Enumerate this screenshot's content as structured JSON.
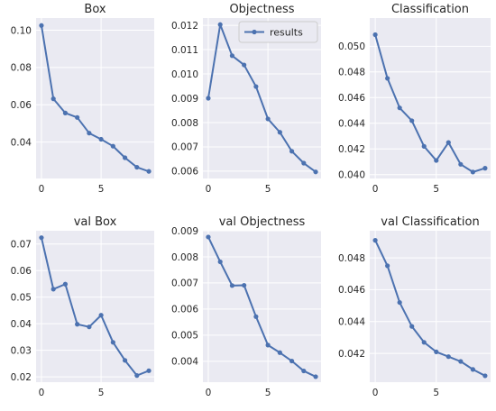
{
  "legend": {
    "label": "results",
    "placement": "upper right of Objectness panel"
  },
  "colors": {
    "series": "#4c72b0",
    "plot_bg": "#eaeaf2",
    "grid": "#ffffff"
  },
  "chart_data": [
    {
      "type": "line",
      "title": "Box",
      "grid": true,
      "x": [
        0,
        1,
        2,
        3,
        4,
        5,
        6,
        7,
        8,
        9
      ],
      "series": [
        {
          "name": "results",
          "values": [
            0.1025,
            0.0632,
            0.0556,
            0.0532,
            0.0448,
            0.0415,
            0.0378,
            0.0316,
            0.0265,
            0.0243
          ]
        }
      ],
      "xlim": [
        -0.45,
        9.45
      ],
      "ylim": [
        0.0205,
        0.1065
      ],
      "xticks": [
        0,
        5
      ],
      "xtick_labels": [
        "0",
        "5"
      ],
      "yticks": [
        0.04,
        0.06,
        0.08,
        0.1
      ],
      "ytick_labels": [
        "0.04",
        "0.06",
        "0.08",
        "0.10"
      ]
    },
    {
      "type": "line",
      "title": "Objectness",
      "grid": true,
      "x": [
        0,
        1,
        2,
        3,
        4,
        5,
        6,
        7,
        8,
        9
      ],
      "series": [
        {
          "name": "results",
          "values": [
            0.009,
            0.01203,
            0.01075,
            0.01037,
            0.00948,
            0.00815,
            0.0076,
            0.00682,
            0.00633,
            0.00597
          ]
        }
      ],
      "xlim": [
        -0.45,
        9.45
      ],
      "ylim": [
        0.0057,
        0.0123
      ],
      "xticks": [
        0,
        5
      ],
      "xtick_labels": [
        "0",
        "5"
      ],
      "yticks": [
        0.006,
        0.007,
        0.008,
        0.009,
        0.01,
        0.011,
        0.012
      ],
      "ytick_labels": [
        "0.006",
        "0.007",
        "0.008",
        "0.009",
        "0.010",
        "0.011",
        "0.012"
      ]
    },
    {
      "type": "line",
      "title": "Classification",
      "grid": true,
      "x": [
        0,
        1,
        2,
        3,
        4,
        5,
        6,
        7,
        8,
        9
      ],
      "series": [
        {
          "name": "results",
          "values": [
            0.0509,
            0.0475,
            0.0452,
            0.0442,
            0.0422,
            0.0411,
            0.0425,
            0.0408,
            0.0402,
            0.0405
          ]
        }
      ],
      "xlim": [
        -0.45,
        9.45
      ],
      "ylim": [
        0.0397,
        0.0522
      ],
      "xticks": [
        0,
        5
      ],
      "xtick_labels": [
        "0",
        "5"
      ],
      "yticks": [
        0.04,
        0.042,
        0.044,
        0.046,
        0.048,
        0.05
      ],
      "ytick_labels": [
        "0.040",
        "0.042",
        "0.044",
        "0.046",
        "0.048",
        "0.050"
      ]
    },
    {
      "type": "line",
      "title": "val Box",
      "grid": true,
      "x": [
        0,
        1,
        2,
        3,
        4,
        5,
        6,
        7,
        8,
        9
      ],
      "series": [
        {
          "name": "results",
          "values": [
            0.0724,
            0.053,
            0.0549,
            0.0398,
            0.0388,
            0.0432,
            0.033,
            0.0262,
            0.0205,
            0.0223
          ]
        }
      ],
      "xlim": [
        -0.45,
        9.45
      ],
      "ylim": [
        0.018,
        0.075
      ],
      "xticks": [
        0,
        5
      ],
      "xtick_labels": [
        "0",
        "5"
      ],
      "yticks": [
        0.02,
        0.03,
        0.04,
        0.05,
        0.06,
        0.07
      ],
      "ytick_labels": [
        "0.02",
        "0.03",
        "0.04",
        "0.05",
        "0.06",
        "0.07"
      ]
    },
    {
      "type": "line",
      "title": "val Objectness",
      "grid": true,
      "x": [
        0,
        1,
        2,
        3,
        4,
        5,
        6,
        7,
        8,
        9
      ],
      "series": [
        {
          "name": "results",
          "values": [
            0.00876,
            0.00781,
            0.0069,
            0.00691,
            0.00571,
            0.00462,
            0.00433,
            0.00401,
            0.00363,
            0.00341
          ]
        }
      ],
      "xlim": [
        -0.45,
        9.45
      ],
      "ylim": [
        0.0032,
        0.009
      ],
      "xticks": [
        0,
        5
      ],
      "xtick_labels": [
        "0",
        "5"
      ],
      "yticks": [
        0.004,
        0.005,
        0.006,
        0.007,
        0.008,
        0.009
      ],
      "ytick_labels": [
        "0.004",
        "0.005",
        "0.006",
        "0.007",
        "0.008",
        "0.009"
      ]
    },
    {
      "type": "line",
      "title": "val Classification",
      "grid": true,
      "x": [
        0,
        1,
        2,
        3,
        4,
        5,
        6,
        7,
        8,
        9
      ],
      "series": [
        {
          "name": "results",
          "values": [
            0.0491,
            0.0475,
            0.0452,
            0.0437,
            0.0427,
            0.0421,
            0.0418,
            0.0415,
            0.041,
            0.0406
          ]
        }
      ],
      "xlim": [
        -0.45,
        9.45
      ],
      "ylim": [
        0.0402,
        0.0497
      ],
      "xticks": [
        0,
        5
      ],
      "xtick_labels": [
        "0",
        "5"
      ],
      "yticks": [
        0.042,
        0.044,
        0.046,
        0.048
      ],
      "ytick_labels": [
        "0.042",
        "0.044",
        "0.046",
        "0.048"
      ]
    }
  ]
}
